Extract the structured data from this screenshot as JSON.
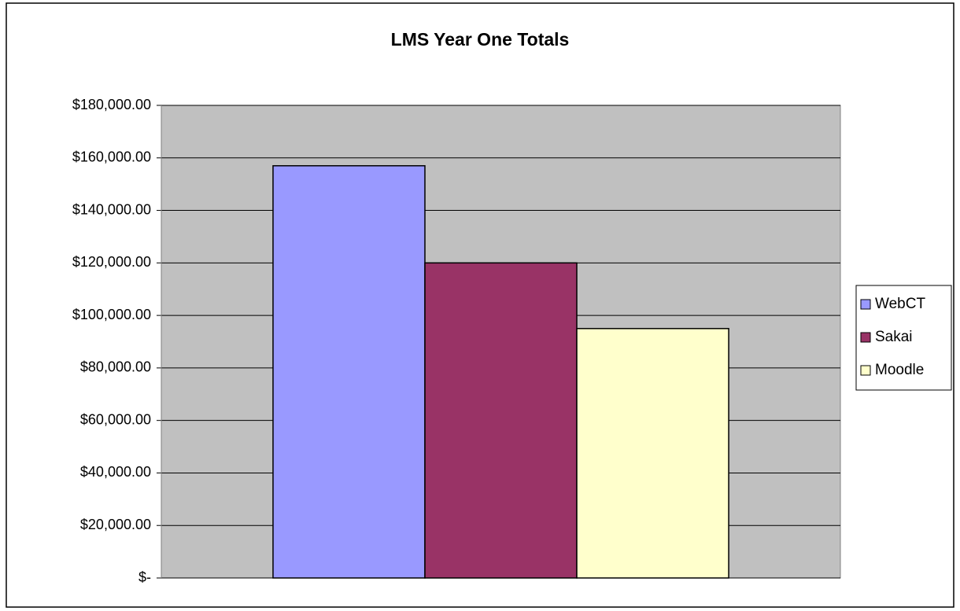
{
  "chart_data": {
    "type": "bar",
    "title": "LMS Year One Totals",
    "categories": [
      null
    ],
    "series": [
      {
        "name": "WebCT",
        "color": "#9999ff",
        "values": [
          157000
        ]
      },
      {
        "name": "Sakai",
        "color": "#993366",
        "values": [
          120000
        ]
      },
      {
        "name": "Moodle",
        "color": "#ffffcc",
        "values": [
          95000
        ]
      }
    ],
    "ylim": [
      0,
      180000
    ],
    "yticks": [
      {
        "value": 0,
        "label": "$-"
      },
      {
        "value": 20000,
        "label": "$20,000.00"
      },
      {
        "value": 40000,
        "label": "$40,000.00"
      },
      {
        "value": 60000,
        "label": "$60,000.00"
      },
      {
        "value": 80000,
        "label": "$80,000.00"
      },
      {
        "value": 100000,
        "label": "$100,000.00"
      },
      {
        "value": 120000,
        "label": "$120,000.00"
      },
      {
        "value": 140000,
        "label": "$140,000.00"
      },
      {
        "value": 160000,
        "label": "$160,000.00"
      },
      {
        "value": 180000,
        "label": "$180,000.00"
      }
    ],
    "grid": true,
    "legend": "right"
  }
}
